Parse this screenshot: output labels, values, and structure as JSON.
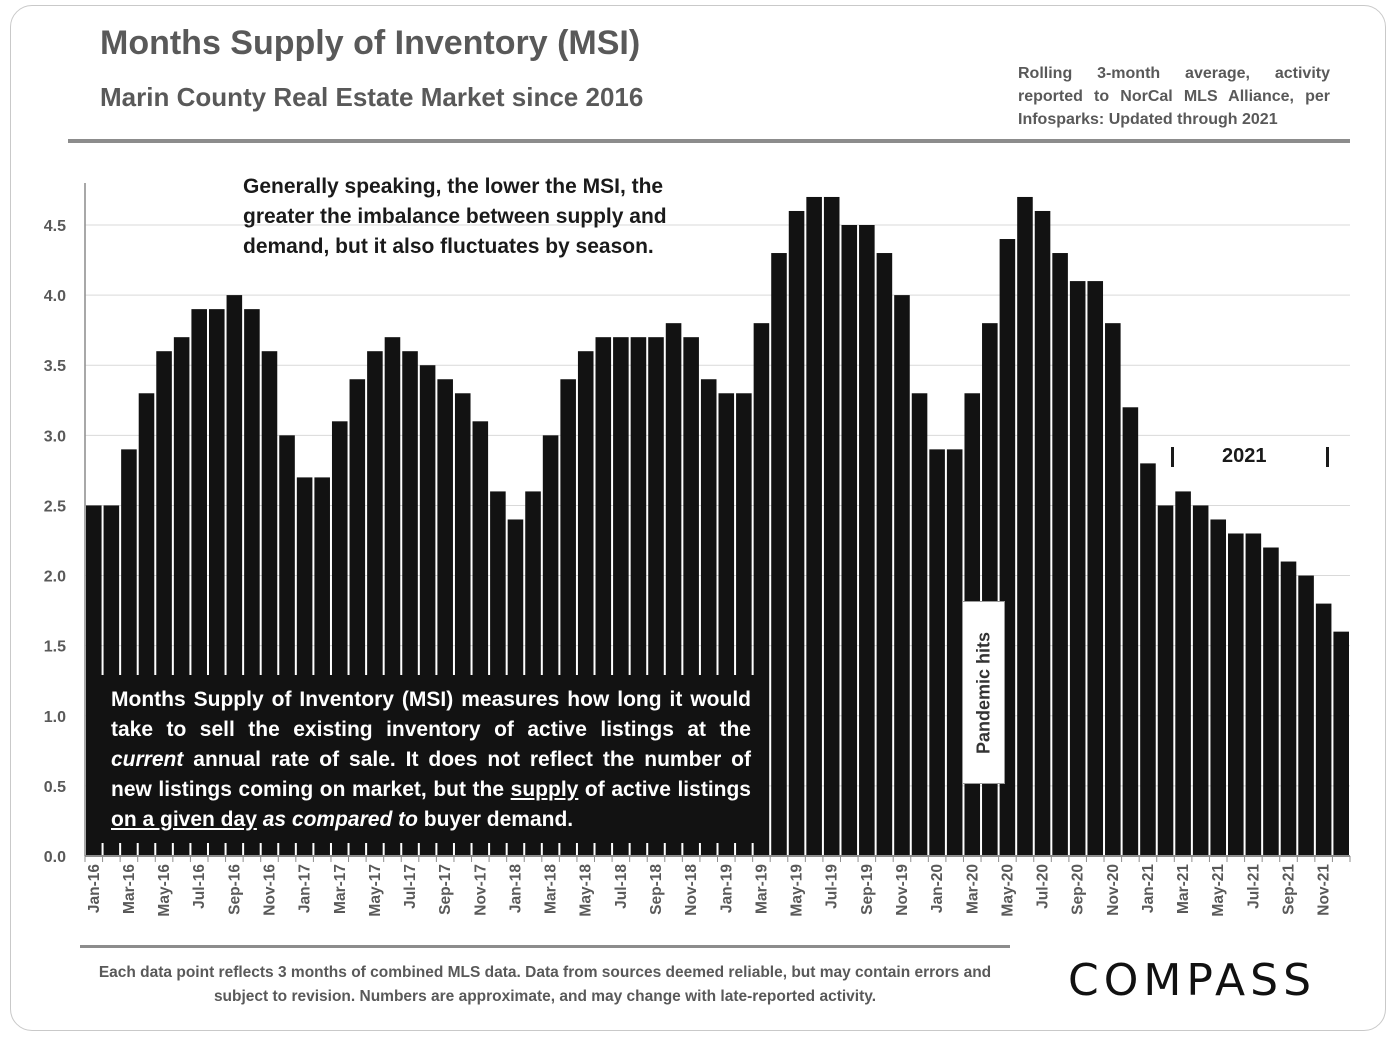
{
  "header": {
    "title": "Months Supply of Inventory (MSI)",
    "subtitle": "Marin County Real Estate Market since 2016",
    "source_note": "Rolling 3-month average, activity reported to NorCal MLS Alliance, per Infosparks: Updated through 2021"
  },
  "annotations": {
    "top_note": "Generally speaking, the lower the MSI, the greater the imbalance between supply and demand, but it also fluctuates by season.",
    "definition": {
      "p1": "Months Supply of Inventory (MSI) measures how long it would take to sell the existing inventory of active listings at the ",
      "em1": "current",
      "p2": " annual rate of sale. It does not reflect the number of new listings coming on market, but the ",
      "u1": "supply",
      "p3": " of active listings ",
      "u2": "on a given day",
      "p4": " ",
      "em2": "as compared to",
      "p5": " buyer demand."
    },
    "pandemic": "Pandemic hits",
    "year_marker": "2021"
  },
  "footer": {
    "note": "Each data point reflects 3 months of combined MLS data. Data from sources deemed reliable, but may contain errors and subject to revision. Numbers are approximate, and may change with late-reported activity.",
    "logo": "COMPASS"
  },
  "colors": {
    "bar": "#121212",
    "axis": "#8c8c8c",
    "grid": "#d9d9d9",
    "text": "#595959"
  },
  "chart_data": {
    "type": "bar",
    "title": "Months Supply of Inventory (MSI)",
    "xlabel": "",
    "ylabel": "",
    "ylim": [
      0,
      4.75
    ],
    "yticks": [
      "0.0",
      "0.5",
      "1.0",
      "1.5",
      "2.0",
      "2.5",
      "3.0",
      "3.5",
      "4.0",
      "4.5"
    ],
    "grid": true,
    "categories": [
      "Jan-16",
      "Feb-16",
      "Mar-16",
      "Apr-16",
      "May-16",
      "Jun-16",
      "Jul-16",
      "Aug-16",
      "Sep-16",
      "Oct-16",
      "Nov-16",
      "Dec-16",
      "Jan-17",
      "Feb-17",
      "Mar-17",
      "Apr-17",
      "May-17",
      "Jun-17",
      "Jul-17",
      "Aug-17",
      "Sep-17",
      "Oct-17",
      "Nov-17",
      "Dec-17",
      "Jan-18",
      "Feb-18",
      "Mar-18",
      "Apr-18",
      "May-18",
      "Jun-18",
      "Jul-18",
      "Aug-18",
      "Sep-18",
      "Oct-18",
      "Nov-18",
      "Dec-18",
      "Jan-19",
      "Feb-19",
      "Mar-19",
      "Apr-19",
      "May-19",
      "Jun-19",
      "Jul-19",
      "Aug-19",
      "Sep-19",
      "Oct-19",
      "Nov-19",
      "Dec-19",
      "Jan-20",
      "Feb-20",
      "Mar-20",
      "Apr-20",
      "May-20",
      "Jun-20",
      "Jul-20",
      "Aug-20",
      "Sep-20",
      "Oct-20",
      "Nov-20",
      "Dec-20",
      "Jan-21",
      "Feb-21",
      "Mar-21",
      "Apr-21",
      "May-21",
      "Jun-21",
      "Jul-21",
      "Aug-21",
      "Sep-21",
      "Oct-21",
      "Nov-21",
      "Dec-21"
    ],
    "tick_labels": [
      "Jan-16",
      "Mar-16",
      "May-16",
      "Jul-16",
      "Sep-16",
      "Nov-16",
      "Jan-17",
      "Mar-17",
      "May-17",
      "Jul-17",
      "Sep-17",
      "Nov-17",
      "Jan-18",
      "Mar-18",
      "May-18",
      "Jul-18",
      "Sep-18",
      "Nov-18",
      "Jan-19",
      "Mar-19",
      "May-19",
      "Jul-19",
      "Sep-19",
      "Nov-19",
      "Jan-20",
      "Mar-20",
      "May-20",
      "Jul-20",
      "Sep-20",
      "Nov-20",
      "Jan-21",
      "Mar-21",
      "May-21",
      "Jul-21",
      "Sep-21",
      "Nov-21"
    ],
    "values": [
      2.5,
      2.5,
      2.9,
      3.3,
      3.6,
      3.7,
      3.9,
      3.9,
      4.0,
      3.9,
      3.6,
      3.0,
      2.7,
      2.7,
      3.1,
      3.4,
      3.6,
      3.7,
      3.6,
      3.5,
      3.4,
      3.3,
      3.1,
      2.6,
      2.4,
      2.6,
      3.0,
      3.4,
      3.6,
      3.7,
      3.7,
      3.7,
      3.7,
      3.8,
      3.7,
      3.4,
      3.3,
      3.3,
      3.8,
      4.3,
      4.6,
      4.7,
      4.7,
      4.5,
      4.5,
      4.3,
      4.0,
      3.3,
      2.9,
      2.9,
      3.3,
      3.8,
      4.4,
      4.7,
      4.6,
      4.3,
      4.1,
      4.1,
      3.8,
      3.2,
      2.8,
      2.5,
      2.6,
      2.5,
      2.4,
      2.3,
      2.3,
      2.2,
      2.1,
      2.0,
      1.8,
      1.6
    ]
  }
}
